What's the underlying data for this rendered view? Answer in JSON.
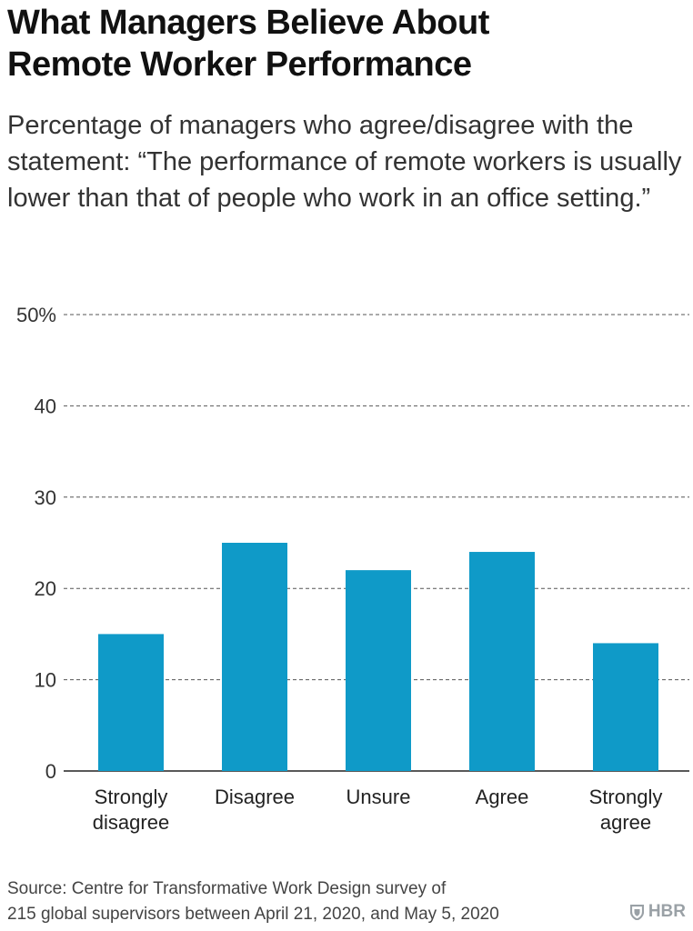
{
  "header": {
    "title_line1": "What Managers Believe About",
    "title_line2": "Remote Worker Performance",
    "subtitle": "Percentage of managers who agree/disagree with the statement: “The performance of remote workers is usually lower than that of people who work in an office setting.”"
  },
  "footer": {
    "source_line1": "Source: Centre for Transformative Work Design survey of",
    "source_line2": "215 global supervisors between April 21, 2020, and May 5, 2020",
    "logo_text": "HBR",
    "logo_icon": "shield-icon"
  },
  "colors": {
    "bar": "#0f9ac8",
    "grid": "#555555",
    "text": "#222222"
  },
  "chart_data": {
    "type": "bar",
    "title": "What Managers Believe About Remote Worker Performance",
    "categories": [
      "Strongly disagree",
      "Disagree",
      "Unsure",
      "Agree",
      "Strongly agree"
    ],
    "category_lines": [
      [
        "Strongly",
        "disagree"
      ],
      [
        "Disagree"
      ],
      [
        "Unsure"
      ],
      [
        "Agree"
      ],
      [
        "Strongly",
        "agree"
      ]
    ],
    "values": [
      15,
      25,
      22,
      24,
      14
    ],
    "ylim": [
      0,
      50
    ],
    "yticks": [
      0,
      10,
      20,
      30,
      40,
      50
    ],
    "ytick_labels": [
      "0",
      "10",
      "20",
      "30",
      "40",
      "50%"
    ],
    "grid": true,
    "grid_style": "dashed",
    "legend": "none",
    "xlabel": "",
    "ylabel": ""
  }
}
